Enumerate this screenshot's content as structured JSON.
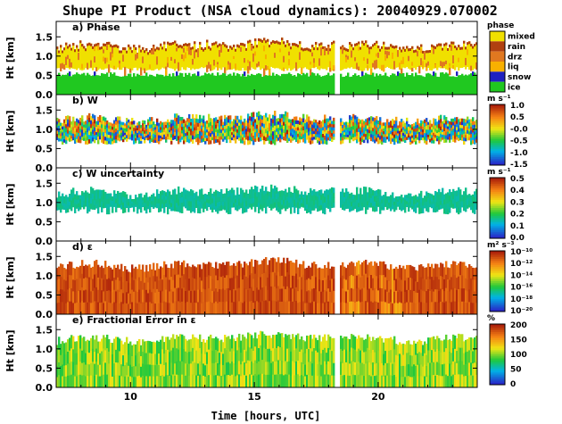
{
  "figure_title": "Shupe PI Product (NSA cloud dynamics): 20040929.070002",
  "x_axis_label": "Time [hours, UTC]",
  "y_axis_label": "Ht [km]",
  "chart_data": [
    {
      "type": "heatmap",
      "title": "a) Phase",
      "ylabel": "Ht [km]",
      "xlabel": "",
      "xlim": [
        7,
        24
      ],
      "ylim": [
        0,
        1.9
      ],
      "yticks": [
        "1.5",
        "1.0",
        "0.5",
        "0.0"
      ],
      "xticks": [
        "10",
        "15",
        "20"
      ],
      "colorbar": {
        "title": "phase",
        "kind": "categorical",
        "labels": [
          "mixed",
          "rain",
          "drz",
          "liq",
          "snow",
          "ice"
        ],
        "colors": [
          "#f0e000",
          "#b04010",
          "#e07820",
          "#f8b000",
          "#2020c0",
          "#20c820"
        ]
      }
    },
    {
      "type": "heatmap",
      "title": "b) W",
      "ylabel": "Ht [km]",
      "xlabel": "",
      "xlim": [
        7,
        24
      ],
      "ylim": [
        0,
        1.9
      ],
      "yticks": [
        "1.5",
        "1.0",
        "0.5",
        "0.0"
      ],
      "xticks": [
        "10",
        "15",
        "20"
      ],
      "colorbar": {
        "title": "m s⁻¹",
        "kind": "continuous",
        "labels": [
          "1.0",
          "0.5",
          "-0.0",
          "-0.5",
          "-1.0",
          "-1.5"
        ],
        "range": [
          -1.5,
          1.0
        ],
        "colormap": "rainbow"
      }
    },
    {
      "type": "heatmap",
      "title": "c) W uncertainty",
      "ylabel": "Ht [km]",
      "xlabel": "",
      "xlim": [
        7,
        24
      ],
      "ylim": [
        0,
        1.9
      ],
      "yticks": [
        "1.5",
        "1.0",
        "0.5",
        "0.0"
      ],
      "xticks": [
        "10",
        "15",
        "20"
      ],
      "colorbar": {
        "title": "m s⁻¹",
        "kind": "continuous",
        "labels": [
          "0.5",
          "0.4",
          "0.3",
          "0.2",
          "0.1",
          "0.0"
        ],
        "range": [
          0.0,
          0.5
        ],
        "colormap": "rainbow"
      }
    },
    {
      "type": "heatmap",
      "title": "d) ε",
      "ylabel": "Ht [km]",
      "xlabel": "",
      "xlim": [
        7,
        24
      ],
      "ylim": [
        0,
        1.9
      ],
      "yticks": [
        "1.5",
        "1.0",
        "0.5",
        "0.0"
      ],
      "xticks": [
        "10",
        "15",
        "20"
      ],
      "colorbar": {
        "title": "m² s⁻³",
        "kind": "continuous",
        "labels": [
          "10⁻¹⁰",
          "10⁻¹²",
          "10⁻¹⁴",
          "10⁻¹⁶",
          "10⁻¹⁸",
          "10⁻²⁰"
        ],
        "range": [
          -20,
          -10
        ],
        "colormap": "rainbow",
        "log_scale": true
      }
    },
    {
      "type": "heatmap",
      "title": "e) Fractional Error in ε",
      "ylabel": "Ht [km]",
      "xlabel": "Time [hours, UTC]",
      "xlim": [
        7,
        24
      ],
      "ylim": [
        0,
        1.9
      ],
      "yticks": [
        "1.5",
        "1.0",
        "0.5",
        "0.0"
      ],
      "xticks": [
        "10",
        "15",
        "20"
      ],
      "colorbar": {
        "title": "%",
        "kind": "continuous",
        "labels": [
          "200",
          "150",
          "100",
          "50",
          "0"
        ],
        "range": [
          0,
          200
        ],
        "colormap": "rainbow"
      }
    }
  ]
}
